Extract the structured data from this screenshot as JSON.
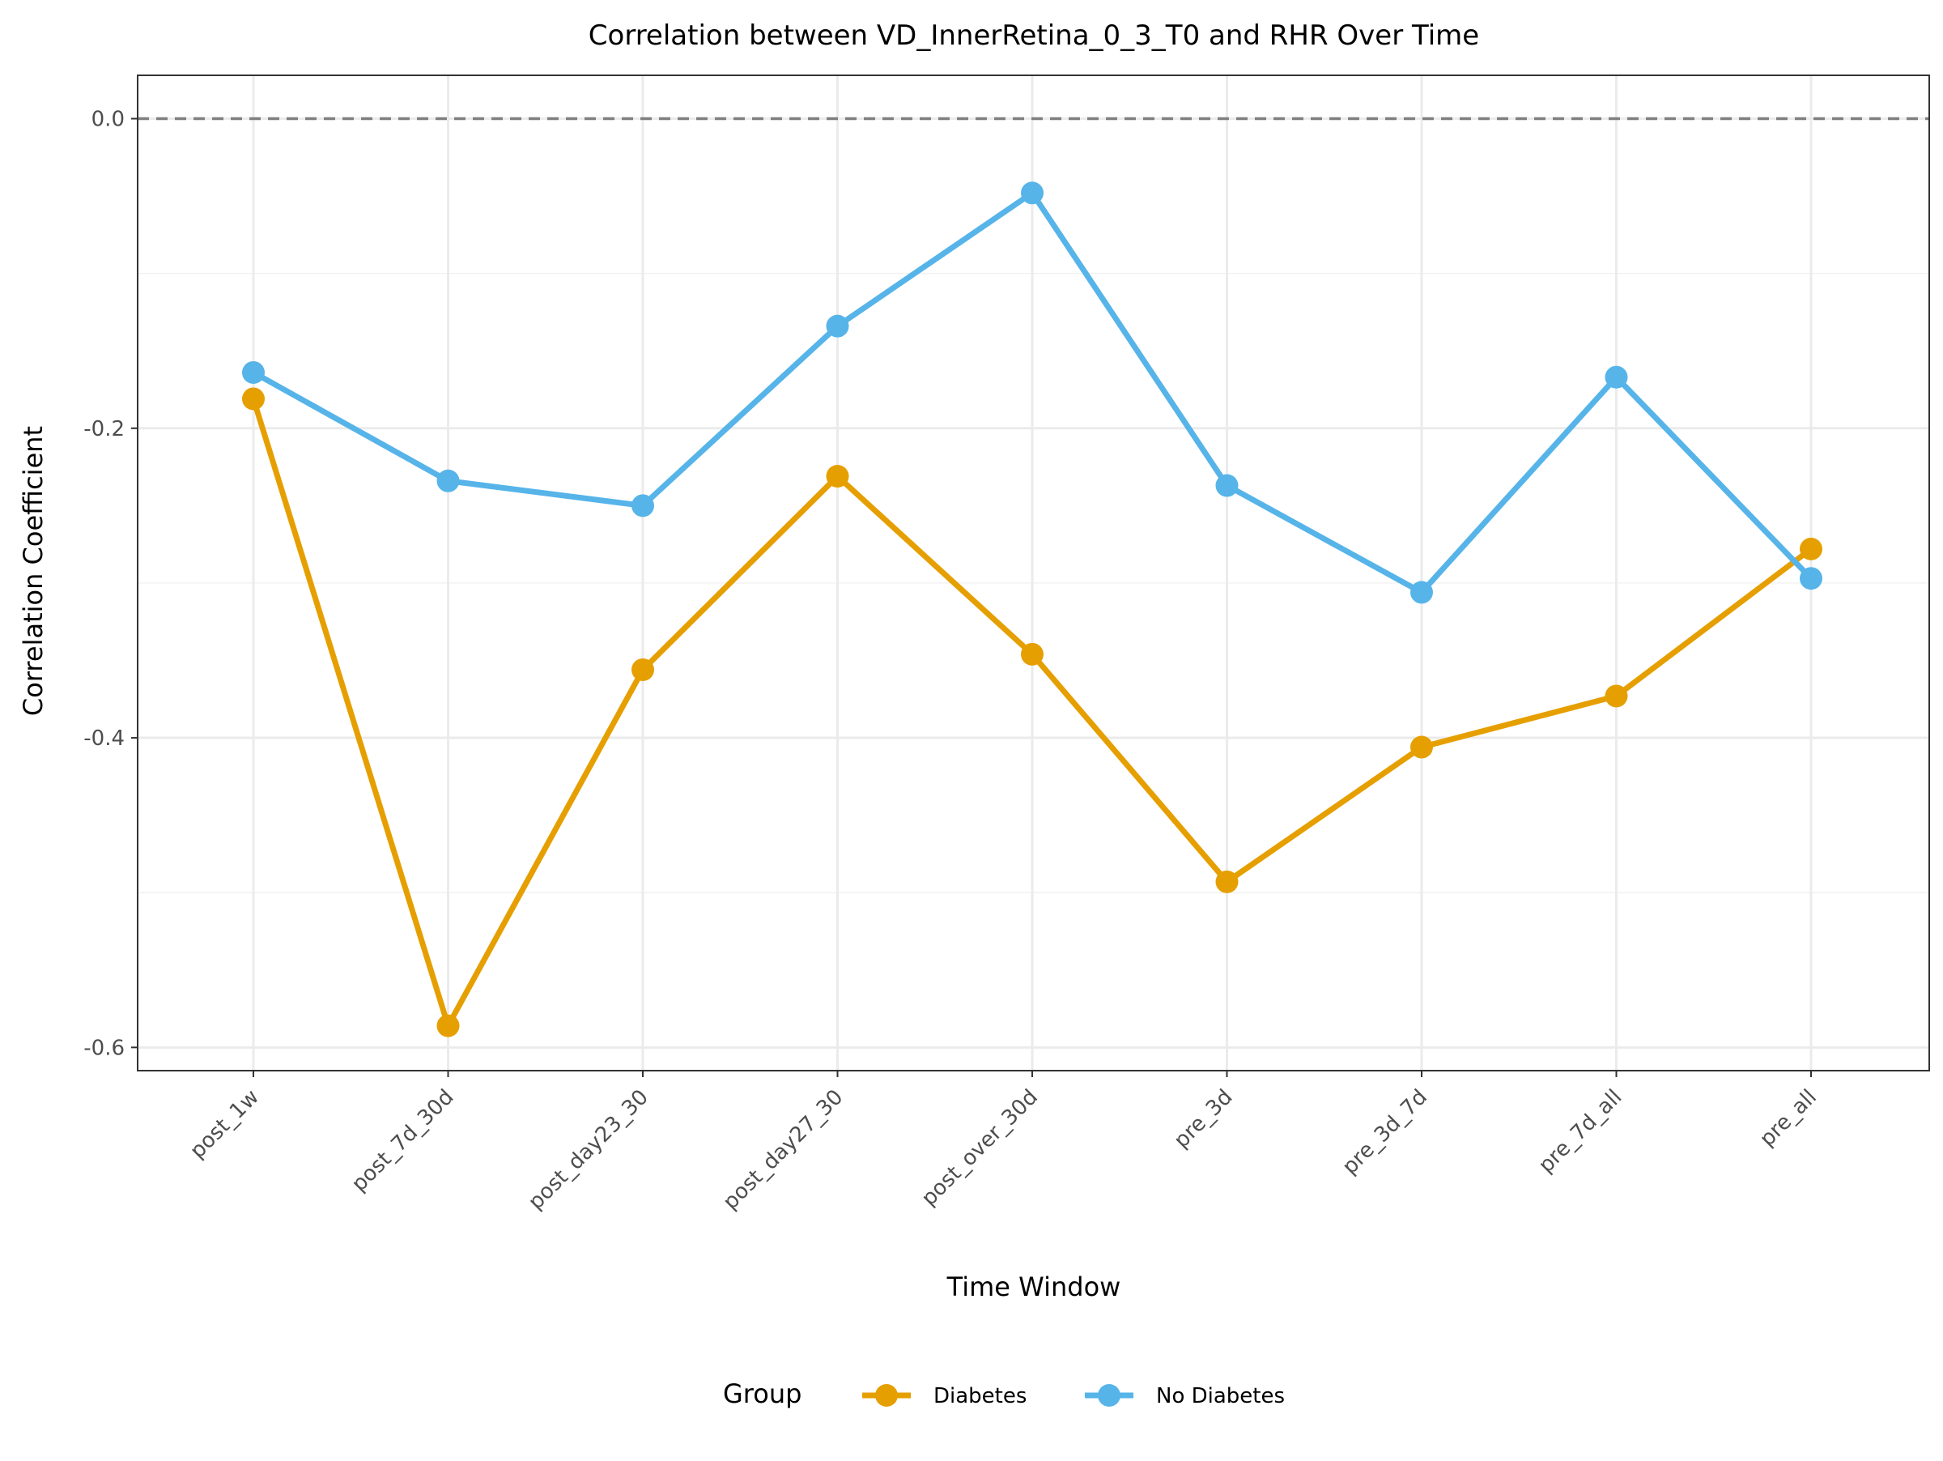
{
  "chart_data": {
    "type": "line",
    "title": "Correlation between VD_InnerRetina_0_3_T0 and RHR Over Time",
    "xlabel": "Time Window",
    "ylabel": "Correlation Coefficient",
    "categories": [
      "post_1w",
      "post_7d_30d",
      "post_day23_30",
      "post_day27_30",
      "post_over_30d",
      "pre_3d",
      "pre_3d_7d",
      "pre_7d_all",
      "pre_all"
    ],
    "ylim": [
      -0.615,
      0.028
    ],
    "yticks": [
      0.0,
      -0.2,
      -0.4,
      -0.6
    ],
    "ytick_labels": [
      "0.0",
      "-0.2",
      "-0.4",
      "-0.6"
    ],
    "reference_line": {
      "y": 0.0,
      "style": "dashed",
      "color": "#7f7f7f"
    },
    "grid": true,
    "legend": {
      "title": "Group",
      "position": "bottom"
    },
    "series": [
      {
        "name": "Diabetes",
        "color": "#E69F00",
        "values": [
          -0.181,
          -0.586,
          -0.356,
          -0.231,
          -0.346,
          -0.493,
          -0.406,
          -0.373,
          -0.278
        ]
      },
      {
        "name": "No Diabetes",
        "color": "#56B4E9",
        "values": [
          -0.164,
          -0.234,
          -0.25,
          -0.134,
          -0.048,
          -0.237,
          -0.306,
          -0.167,
          -0.297
        ]
      }
    ]
  }
}
